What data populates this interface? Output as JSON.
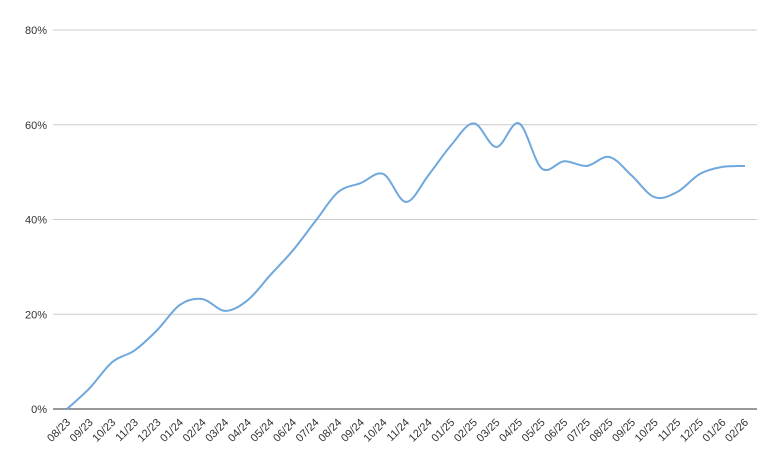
{
  "chart_data": {
    "type": "line",
    "categories": [
      "08/23",
      "09/23",
      "10/23",
      "11/23",
      "12/23",
      "01/24",
      "02/24",
      "03/24",
      "04/24",
      "05/24",
      "06/24",
      "07/24",
      "08/24",
      "09/24",
      "10/24",
      "11/24",
      "12/24",
      "01/25",
      "02/25",
      "03/25",
      "04/25",
      "05/25",
      "06/25",
      "07/25",
      "08/25",
      "09/25",
      "10/25",
      "11/25",
      "12/25",
      "01/26",
      "02/26"
    ],
    "series": [
      {
        "color": "#6fa8dc",
        "values": [
          0,
          4.4,
          9.9,
          12.4,
          16.7,
          22,
          23.2,
          20.7,
          23,
          28.3,
          33.5,
          39.7,
          45.8,
          47.7,
          49.6,
          43.7,
          49.4,
          55.7,
          60.3,
          55.3,
          60.3,
          50.8,
          52.3,
          51.3,
          53.2,
          49.2,
          44.7,
          45.8,
          49.6,
          51.1,
          51.3
        ]
      }
    ],
    "ylim": [
      0,
      80
    ],
    "yticks": [
      {
        "value": 0,
        "label": "0%"
      },
      {
        "value": 20,
        "label": "20%"
      },
      {
        "value": 40,
        "label": "40%"
      },
      {
        "value": 60,
        "label": "60%"
      },
      {
        "value": 80,
        "label": "80%"
      }
    ],
    "grid": true
  }
}
